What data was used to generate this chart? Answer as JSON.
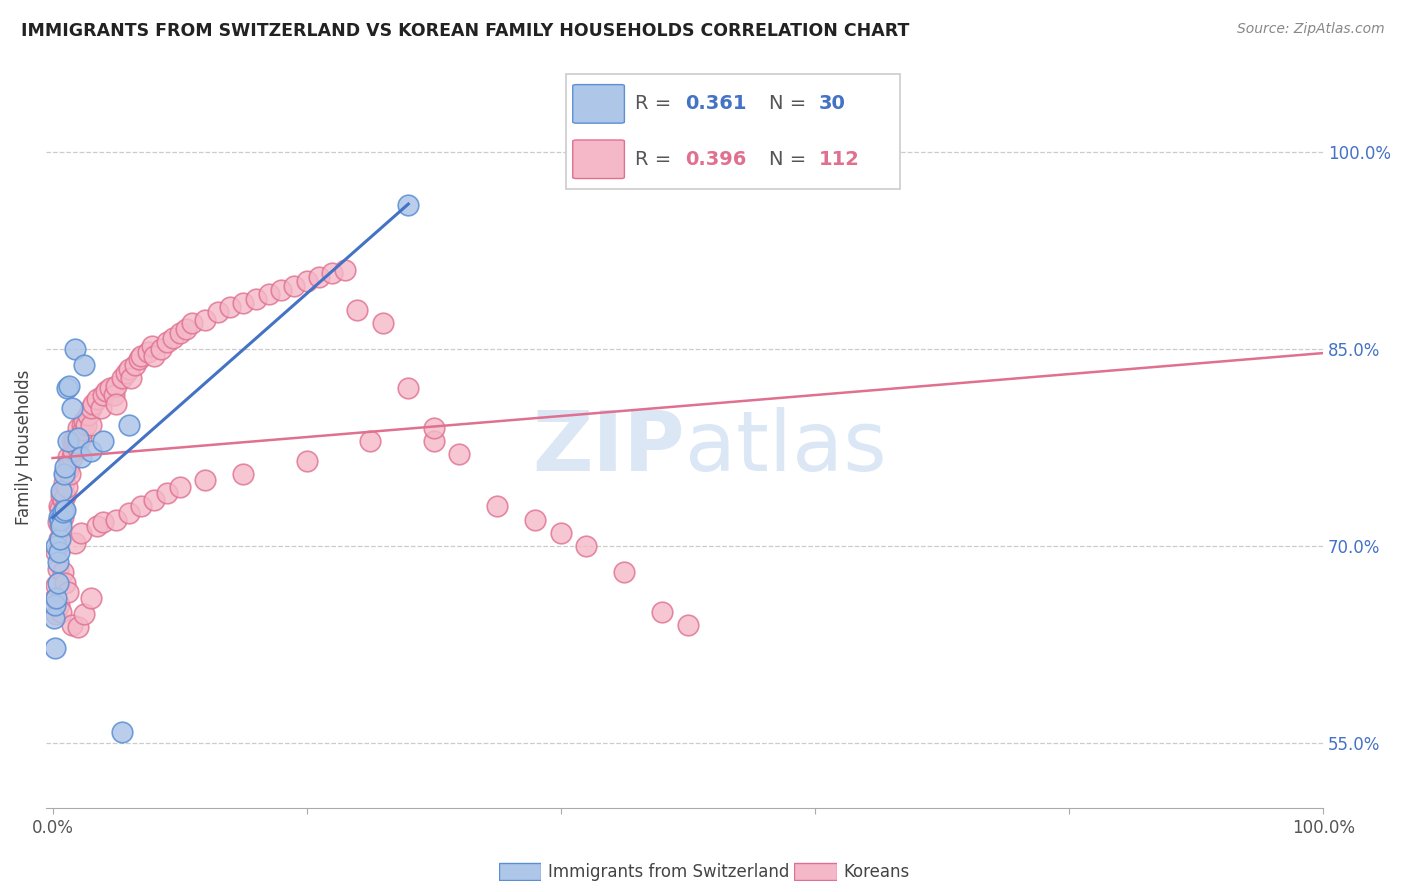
{
  "title": "IMMIGRANTS FROM SWITZERLAND VS KOREAN FAMILY HOUSEHOLDS CORRELATION CHART",
  "source": "Source: ZipAtlas.com",
  "ylabel": "Family Households",
  "legend1_R": "0.361",
  "legend1_N": "30",
  "legend2_R": "0.396",
  "legend2_N": "112",
  "blue_fill": "#aec6e8",
  "blue_edge": "#5b8fd4",
  "blue_line": "#4472c4",
  "pink_fill": "#f4b8c8",
  "pink_edge": "#e07090",
  "pink_line": "#e07090",
  "watermark_color": "#ccddf0",
  "swiss_x": [
    0.001,
    0.002,
    0.002,
    0.003,
    0.003,
    0.004,
    0.004,
    0.005,
    0.005,
    0.006,
    0.006,
    0.007,
    0.007,
    0.008,
    0.009,
    0.01,
    0.01,
    0.011,
    0.012,
    0.013,
    0.015,
    0.018,
    0.02,
    0.022,
    0.025,
    0.03,
    0.04,
    0.055,
    0.06,
    0.28
  ],
  "swiss_y": [
    0.645,
    0.622,
    0.655,
    0.66,
    0.7,
    0.672,
    0.688,
    0.695,
    0.722,
    0.705,
    0.72,
    0.715,
    0.742,
    0.726,
    0.755,
    0.76,
    0.727,
    0.82,
    0.78,
    0.822,
    0.805,
    0.85,
    0.782,
    0.768,
    0.838,
    0.772,
    0.78,
    0.558,
    0.792,
    0.96
  ],
  "korean_x": [
    0.002,
    0.003,
    0.003,
    0.004,
    0.004,
    0.005,
    0.005,
    0.006,
    0.006,
    0.007,
    0.007,
    0.008,
    0.008,
    0.009,
    0.009,
    0.01,
    0.01,
    0.011,
    0.012,
    0.012,
    0.013,
    0.014,
    0.015,
    0.015,
    0.016,
    0.017,
    0.018,
    0.019,
    0.02,
    0.02,
    0.022,
    0.023,
    0.024,
    0.025,
    0.026,
    0.028,
    0.03,
    0.03,
    0.032,
    0.035,
    0.038,
    0.04,
    0.042,
    0.045,
    0.048,
    0.05,
    0.05,
    0.055,
    0.058,
    0.06,
    0.062,
    0.065,
    0.068,
    0.07,
    0.075,
    0.078,
    0.08,
    0.085,
    0.09,
    0.095,
    0.1,
    0.105,
    0.11,
    0.12,
    0.13,
    0.14,
    0.15,
    0.16,
    0.17,
    0.18,
    0.19,
    0.2,
    0.21,
    0.22,
    0.23,
    0.24,
    0.26,
    0.28,
    0.3,
    0.32,
    0.35,
    0.38,
    0.4,
    0.42,
    0.45,
    0.48,
    0.5,
    0.003,
    0.005,
    0.007,
    0.015,
    0.02,
    0.025,
    0.03,
    0.008,
    0.01,
    0.012,
    0.018,
    0.022,
    0.035,
    0.04,
    0.05,
    0.06,
    0.07,
    0.08,
    0.09,
    0.1,
    0.12,
    0.15,
    0.2,
    0.25,
    0.3
  ],
  "korean_y": [
    0.66,
    0.67,
    0.695,
    0.682,
    0.718,
    0.705,
    0.73,
    0.715,
    0.728,
    0.72,
    0.738,
    0.722,
    0.735,
    0.728,
    0.748,
    0.738,
    0.755,
    0.745,
    0.758,
    0.768,
    0.762,
    0.755,
    0.768,
    0.78,
    0.772,
    0.778,
    0.782,
    0.775,
    0.778,
    0.79,
    0.782,
    0.792,
    0.788,
    0.795,
    0.792,
    0.8,
    0.792,
    0.805,
    0.808,
    0.812,
    0.805,
    0.815,
    0.818,
    0.82,
    0.815,
    0.822,
    0.808,
    0.828,
    0.832,
    0.835,
    0.828,
    0.838,
    0.842,
    0.845,
    0.848,
    0.852,
    0.845,
    0.85,
    0.855,
    0.858,
    0.862,
    0.865,
    0.87,
    0.872,
    0.878,
    0.882,
    0.885,
    0.888,
    0.892,
    0.895,
    0.898,
    0.902,
    0.905,
    0.908,
    0.91,
    0.88,
    0.87,
    0.82,
    0.78,
    0.77,
    0.73,
    0.72,
    0.71,
    0.7,
    0.68,
    0.65,
    0.64,
    0.648,
    0.655,
    0.65,
    0.64,
    0.638,
    0.648,
    0.66,
    0.68,
    0.672,
    0.665,
    0.702,
    0.71,
    0.715,
    0.718,
    0.72,
    0.725,
    0.73,
    0.735,
    0.74,
    0.745,
    0.75,
    0.755,
    0.765,
    0.78,
    0.79
  ],
  "xlim": [
    0.0,
    1.0
  ],
  "ylim": [
    0.5,
    1.05
  ],
  "yticks": [
    0.55,
    0.7,
    0.85,
    1.0
  ],
  "ytick_labels": [
    "55.0%",
    "70.0%",
    "85.0%",
    "100.0%"
  ],
  "xtick_left_label": "0.0%",
  "xtick_right_label": "100.0%"
}
